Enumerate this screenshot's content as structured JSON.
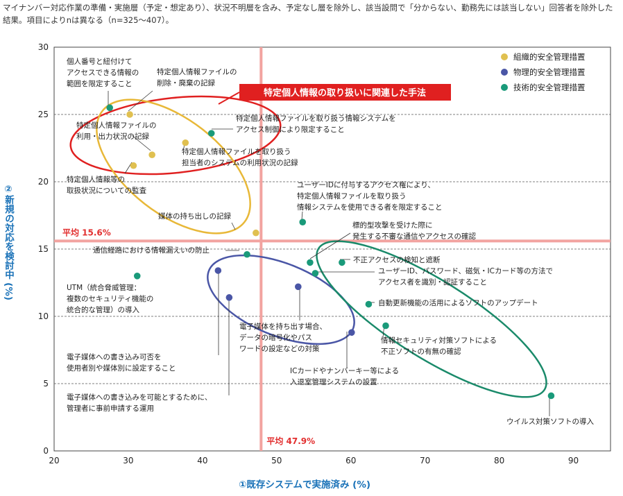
{
  "note": "マイナンバー対応作業の準備・実施層（予定・想定あり）、状況不明層を含み、予定なし層を除外し、該当設問で「分からない、勤務先には該当しない」回答者を除外した結果。項目によりnは異なる（n=325～407）。",
  "chart_data": {
    "type": "scatter",
    "xlabel": "①既存システムで実施済み (%)",
    "ylabel": "②新規の対応を検討中 (%)",
    "xlim": [
      20,
      95
    ],
    "ylim": [
      0,
      30
    ],
    "xticks": [
      20,
      30,
      40,
      50,
      60,
      70,
      80,
      90
    ],
    "yticks": [
      0,
      5,
      10,
      15,
      20,
      25,
      30
    ],
    "grid": "horizontal-dashed",
    "legend_position": "top-right",
    "reference_lines": {
      "x": {
        "value": 47.9,
        "label": "平均 47.9%"
      },
      "y": {
        "value": 15.6,
        "label": "平均 15.6%"
      }
    },
    "callout": "特定個人情報の取り扱いに関連した手法",
    "series": [
      {
        "name": "組織的安全管理措置",
        "color": "#e0c050",
        "points": [
          {
            "x": 30.2,
            "y": 25.0,
            "label": "特定個人情報ファイルの\n削除・廃棄の記録"
          },
          {
            "x": 33.2,
            "y": 22.0,
            "label": "特定個人情報ファイルの\n利用・出力状況の記録"
          },
          {
            "x": 37.7,
            "y": 22.9,
            "label": "特定個人情報ファイルを取り扱う\n担当者のシステムの利用状況の記録"
          },
          {
            "x": 30.7,
            "y": 21.2,
            "label": "特定個人情報等の\n取扱状況についての監査"
          },
          {
            "x": 47.2,
            "y": 16.2,
            "label": "媒体の持ち出しの記録"
          }
        ]
      },
      {
        "name": "物理的安全管理措置",
        "color": "#4a56a6",
        "points": [
          {
            "x": 42.1,
            "y": 13.4,
            "label": "電子媒体への書き込み可否を\n使用者別や媒体別に設定すること"
          },
          {
            "x": 43.6,
            "y": 11.4,
            "label": "電子媒体への書き込みを可能とするために、\n管理者に事前申請する運用"
          },
          {
            "x": 52.9,
            "y": 12.2,
            "label": "電子媒体を持ち出す場合、\nデータの暗号化やパス\nワードの設定などの対策"
          },
          {
            "x": 60.1,
            "y": 8.8,
            "label": "ICカードやナンバーキー等による\n入退室管理システムの設置"
          }
        ]
      },
      {
        "name": "技術的安全管理措置",
        "color": "#1a9a7a",
        "points": [
          {
            "x": 27.5,
            "y": 25.5,
            "label": "個人番号と紐付けて\nアクセスできる情報の\n範囲を限定すること"
          },
          {
            "x": 41.2,
            "y": 23.6,
            "label": "特定個人情報ファイルを取り扱う情報システムを\nアクセス制御により限定すること"
          },
          {
            "x": 53.5,
            "y": 17.0,
            "label": "ユーザーIDに付与するアクセス権により、\n特定個人情報ファイルを取り扱う\n情報システムを使用できる者を限定すること"
          },
          {
            "x": 46.0,
            "y": 14.6,
            "label": "通信経路における情報漏えいの防止"
          },
          {
            "x": 54.5,
            "y": 14.0,
            "label": "標的型攻撃を受けた際に\n発生する不審な通信やアクセスの確認"
          },
          {
            "x": 58.8,
            "y": 14.0,
            "label": "不正アクセスの検知と遮断"
          },
          {
            "x": 55.2,
            "y": 13.2,
            "label": "ユーザーID、パスワード、磁気・ICカード等の方法で\nアクセス者を識別・認証すること"
          },
          {
            "x": 31.2,
            "y": 13.0,
            "label": "UTM（統合脅威管理：\n複数のセキュリティ機能の\n統合的な管理）の導入"
          },
          {
            "x": 62.4,
            "y": 10.9,
            "label": "自動更新機能の活用によるソフトのアップデート"
          },
          {
            "x": 64.7,
            "y": 9.3,
            "label": "情報セキュリティ対策ソフトによる\n不正ソフトの有無の確認"
          },
          {
            "x": 87.0,
            "y": 4.1,
            "label": "ウイルス対策ソフトの導入"
          }
        ]
      }
    ]
  }
}
